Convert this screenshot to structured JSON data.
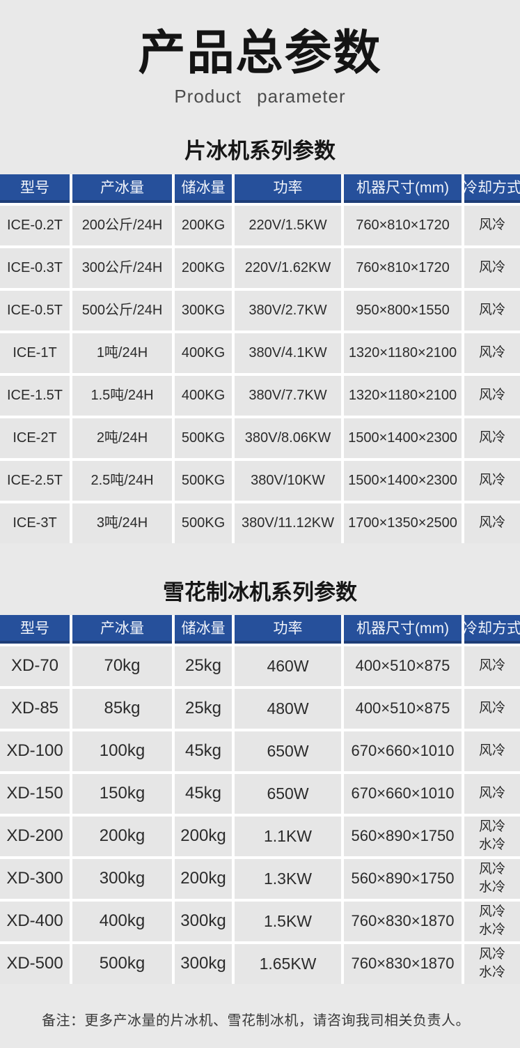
{
  "page": {
    "title": "产品总参数",
    "subtitle": "Product  parameter",
    "note": "备注：更多产冰量的片冰机、雪花制冰机，请咨询我司相关负责人。"
  },
  "colors": {
    "page_background": "#e9e9e9",
    "cell_background": "#e6e6e6",
    "gridline": "#ffffff",
    "header_blue": "#26509b",
    "header_border_dark": "#1e3d77",
    "header_text": "#f2f5fb",
    "body_text": "#2b2b2b"
  },
  "tables": [
    {
      "section_title": "片冰机系列参数",
      "headers": [
        "型号",
        "产冰量",
        "储冰量",
        "功率",
        "机器尺寸(mm)",
        "冷却方式"
      ],
      "rows": [
        [
          "ICE-0.2T",
          "200公斤/24H",
          "200KG",
          "220V/1.5KW",
          "760×810×1720",
          "风冷"
        ],
        [
          "ICE-0.3T",
          "300公斤/24H",
          "200KG",
          "220V/1.62KW",
          "760×810×1720",
          "风冷"
        ],
        [
          "ICE-0.5T",
          "500公斤/24H",
          "300KG",
          "380V/2.7KW",
          "950×800×1550",
          "风冷"
        ],
        [
          "ICE-1T",
          "1吨/24H",
          "400KG",
          "380V/4.1KW",
          "1320×1180×2100",
          "风冷"
        ],
        [
          "ICE-1.5T",
          "1.5吨/24H",
          "400KG",
          "380V/7.7KW",
          "1320×1180×2100",
          "风冷"
        ],
        [
          "ICE-2T",
          "2吨/24H",
          "500KG",
          "380V/8.06KW",
          "1500×1400×2300",
          "风冷"
        ],
        [
          "ICE-2.5T",
          "2.5吨/24H",
          "500KG",
          "380V/10KW",
          "1500×1400×2300",
          "风冷"
        ],
        [
          "ICE-3T",
          "3吨/24H",
          "500KG",
          "380V/11.12KW",
          "1700×1350×2500",
          "风冷"
        ]
      ]
    },
    {
      "section_title": "雪花制冰机系列参数",
      "headers": [
        "型号",
        "产冰量",
        "储冰量",
        "功率",
        "机器尺寸(mm)",
        "冷却方式"
      ],
      "rows": [
        [
          "XD-70",
          "70kg",
          "25kg",
          "460W",
          "400×510×875",
          "风冷"
        ],
        [
          "XD-85",
          "85kg",
          "25kg",
          "480W",
          "400×510×875",
          "风冷"
        ],
        [
          "XD-100",
          "100kg",
          "45kg",
          "650W",
          "670×660×1010",
          "风冷"
        ],
        [
          "XD-150",
          "150kg",
          "45kg",
          "650W",
          "670×660×1010",
          "风冷"
        ],
        [
          "XD-200",
          "200kg",
          "200kg",
          "1.1KW",
          "560×890×1750",
          "风冷\n水冷"
        ],
        [
          "XD-300",
          "300kg",
          "200kg",
          "1.3KW",
          "560×890×1750",
          "风冷\n水冷"
        ],
        [
          "XD-400",
          "400kg",
          "300kg",
          "1.5KW",
          "760×830×1870",
          "风冷\n水冷"
        ],
        [
          "XD-500",
          "500kg",
          "300kg",
          "1.65KW",
          "760×830×1870",
          "风冷\n水冷"
        ]
      ]
    }
  ]
}
